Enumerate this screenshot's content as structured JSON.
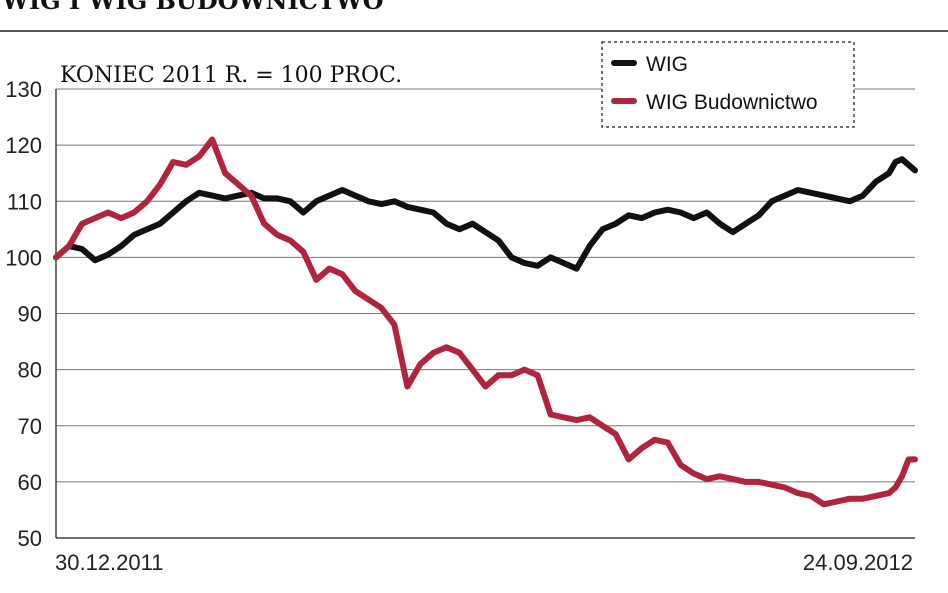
{
  "header": {
    "title": "WIG I WIG BUDOWNICTWO"
  },
  "chart_data": {
    "type": "line",
    "subtitle": "KONIEC 2011 R. = 100 PROC.",
    "xlabel": "",
    "ylabel": "",
    "ylim": [
      50,
      130
    ],
    "yticks": [
      50,
      60,
      70,
      80,
      90,
      100,
      110,
      120,
      130
    ],
    "xtick_labels": [
      "30.12.2011",
      "24.09.2012"
    ],
    "grid": true,
    "legend_position": "top-right",
    "colors": {
      "WIG": "#111111",
      "WIG Budownictwo": "#b0243f"
    },
    "series": [
      {
        "name": "WIG",
        "points": [
          [
            0,
            100
          ],
          [
            2,
            102
          ],
          [
            4,
            101.5
          ],
          [
            6,
            99.5
          ],
          [
            8,
            100.5
          ],
          [
            10,
            102
          ],
          [
            12,
            104
          ],
          [
            14,
            105
          ],
          [
            16,
            106
          ],
          [
            18,
            108
          ],
          [
            20,
            110
          ],
          [
            22,
            111.5
          ],
          [
            24,
            111
          ],
          [
            26,
            110.5
          ],
          [
            28,
            111
          ],
          [
            30,
            111.5
          ],
          [
            32,
            110.5
          ],
          [
            34,
            110.5
          ],
          [
            36,
            110
          ],
          [
            38,
            108
          ],
          [
            40,
            110
          ],
          [
            42,
            111
          ],
          [
            44,
            112
          ],
          [
            46,
            111
          ],
          [
            48,
            110
          ],
          [
            50,
            109.5
          ],
          [
            52,
            110
          ],
          [
            54,
            109
          ],
          [
            56,
            108.5
          ],
          [
            58,
            108
          ],
          [
            60,
            106
          ],
          [
            62,
            105
          ],
          [
            64,
            106
          ],
          [
            66,
            104.5
          ],
          [
            68,
            103
          ],
          [
            70,
            100
          ],
          [
            72,
            99
          ],
          [
            74,
            98.5
          ],
          [
            76,
            100
          ],
          [
            78,
            99
          ],
          [
            80,
            98
          ],
          [
            82,
            102
          ],
          [
            84,
            105
          ],
          [
            86,
            106
          ],
          [
            88,
            107.5
          ],
          [
            90,
            107
          ],
          [
            92,
            108
          ],
          [
            94,
            108.5
          ],
          [
            96,
            108
          ],
          [
            98,
            107
          ],
          [
            100,
            108
          ],
          [
            102,
            106
          ],
          [
            104,
            104.5
          ],
          [
            106,
            106
          ],
          [
            108,
            107.5
          ],
          [
            110,
            110
          ],
          [
            112,
            111
          ],
          [
            114,
            112
          ],
          [
            116,
            111.5
          ],
          [
            118,
            111
          ],
          [
            120,
            110.5
          ],
          [
            122,
            110
          ],
          [
            124,
            111
          ],
          [
            126,
            113.5
          ],
          [
            128,
            115
          ],
          [
            129,
            117
          ],
          [
            130,
            117.5
          ],
          [
            131,
            116.5
          ],
          [
            132,
            115.5
          ]
        ]
      },
      {
        "name": "WIG Budownictwo",
        "points": [
          [
            0,
            100
          ],
          [
            2,
            102
          ],
          [
            4,
            106
          ],
          [
            6,
            107
          ],
          [
            8,
            108
          ],
          [
            10,
            107
          ],
          [
            12,
            108
          ],
          [
            14,
            110
          ],
          [
            16,
            113
          ],
          [
            18,
            117
          ],
          [
            20,
            116.5
          ],
          [
            22,
            118
          ],
          [
            24,
            121
          ],
          [
            26,
            115
          ],
          [
            28,
            113
          ],
          [
            30,
            111
          ],
          [
            32,
            106
          ],
          [
            34,
            104
          ],
          [
            36,
            103
          ],
          [
            38,
            101
          ],
          [
            40,
            96
          ],
          [
            42,
            98
          ],
          [
            44,
            97
          ],
          [
            46,
            94
          ],
          [
            48,
            92.5
          ],
          [
            50,
            91
          ],
          [
            52,
            88
          ],
          [
            54,
            77
          ],
          [
            56,
            81
          ],
          [
            58,
            83
          ],
          [
            60,
            84
          ],
          [
            62,
            83
          ],
          [
            64,
            80
          ],
          [
            66,
            77
          ],
          [
            68,
            79
          ],
          [
            70,
            79
          ],
          [
            72,
            80
          ],
          [
            74,
            79
          ],
          [
            76,
            72
          ],
          [
            78,
            71.5
          ],
          [
            80,
            71
          ],
          [
            82,
            71.5
          ],
          [
            84,
            70
          ],
          [
            86,
            68.5
          ],
          [
            88,
            64
          ],
          [
            90,
            66
          ],
          [
            92,
            67.5
          ],
          [
            94,
            67
          ],
          [
            96,
            63
          ],
          [
            98,
            61.5
          ],
          [
            100,
            60.5
          ],
          [
            102,
            61
          ],
          [
            104,
            60.5
          ],
          [
            106,
            60
          ],
          [
            108,
            60
          ],
          [
            110,
            59.5
          ],
          [
            112,
            59
          ],
          [
            114,
            58
          ],
          [
            116,
            57.5
          ],
          [
            118,
            56
          ],
          [
            120,
            56.5
          ],
          [
            122,
            57
          ],
          [
            124,
            57
          ],
          [
            126,
            57.5
          ],
          [
            128,
            58
          ],
          [
            129,
            59
          ],
          [
            130,
            61
          ],
          [
            131,
            64
          ],
          [
            132,
            64
          ]
        ]
      }
    ]
  }
}
